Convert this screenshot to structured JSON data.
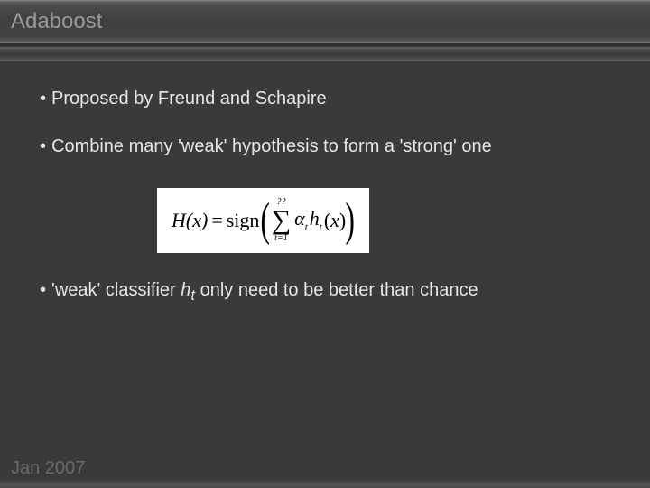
{
  "slide": {
    "title": "Adaboost",
    "footer": "Jan 2007",
    "background_color": "#3a3a3a",
    "title_color": "#9a9a9a",
    "text_color": "#e6e6e6",
    "title_fontsize": 24,
    "body_fontsize": 20
  },
  "bullets": {
    "b1": {
      "dot": "•",
      "text": "Proposed by Freund and Schapire"
    },
    "b2": {
      "dot": "•",
      "text": "Combine many 'weak' hypothesis to form a 'strong' one"
    },
    "b3": {
      "dot": "•",
      "pre": "'weak' classifier ",
      "var": "h",
      "sub": "t",
      "post": " only need to be better than chance"
    }
  },
  "equation": {
    "lhs_H": "H",
    "lhs_x": "x",
    "equals": "=",
    "op": "sign",
    "lparen": "(",
    "rparen": ")",
    "sum_top": "??",
    "sum_sym": "∑",
    "sum_bot": "t=1",
    "alpha": "α",
    "alpha_sub": "t",
    "h": "h",
    "h_sub": "t",
    "arg_l": "(",
    "arg_x": "x",
    "arg_r": ")",
    "box_bg": "#ffffff",
    "box_fg": "#000000",
    "font": "Times New Roman"
  }
}
